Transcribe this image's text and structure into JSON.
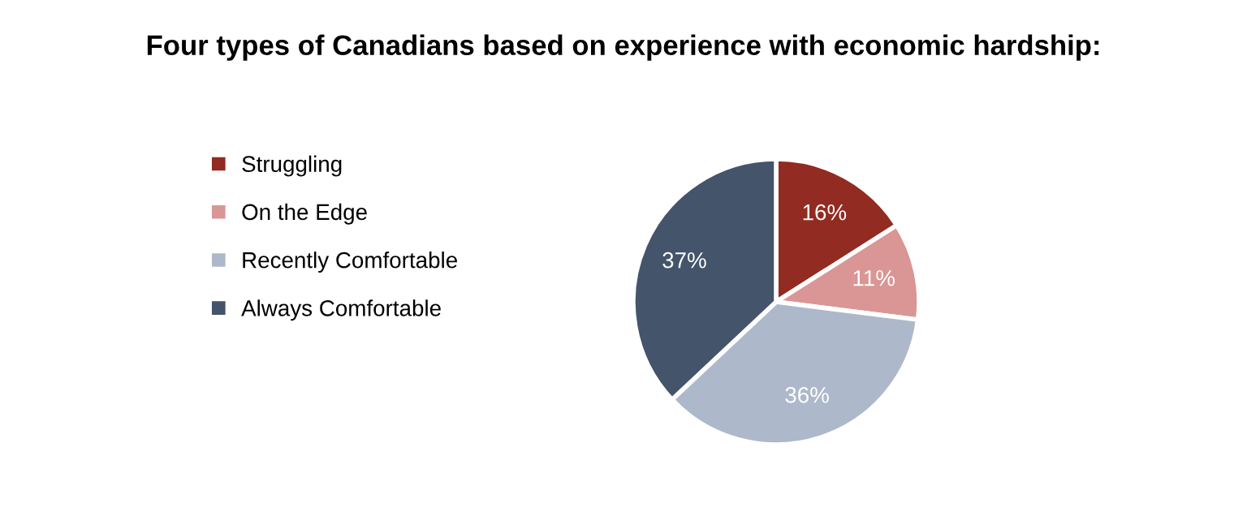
{
  "chart_data": {
    "type": "pie",
    "title": "Four types of Canadians based on experience with economic hardship:",
    "categories": [
      "Struggling",
      "On the Edge",
      "Recently Comfortable",
      "Always Comfortable"
    ],
    "values": [
      16,
      11,
      36,
      37
    ],
    "value_labels": [
      "16%",
      "11%",
      "36%",
      "37%"
    ],
    "colors": [
      "#922b21",
      "#d99694",
      "#adb9ca",
      "#44546a"
    ],
    "legend": "left"
  }
}
